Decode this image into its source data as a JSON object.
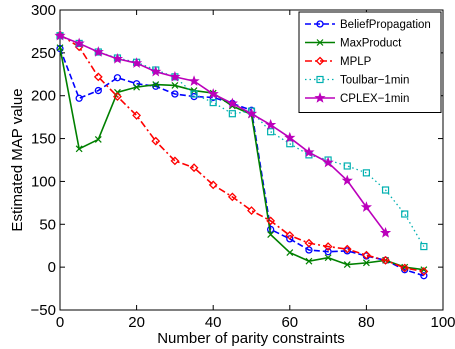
{
  "chart_data": {
    "type": "line",
    "title": "",
    "xlabel": "Number of parity constraints",
    "ylabel": "Estimated MAP value",
    "xlim": [
      0,
      100
    ],
    "ylim": [
      -50,
      300
    ],
    "xticks": [
      0,
      20,
      40,
      60,
      80,
      100
    ],
    "yticks": [
      -50,
      0,
      50,
      100,
      150,
      200,
      250,
      300
    ],
    "grid": false,
    "legend_position": "top-right",
    "series": [
      {
        "name": "BeliefPropagation",
        "color": "#0000ff",
        "line_style": "dashed",
        "marker": "circle",
        "x": [
          0,
          5,
          10,
          15,
          20,
          25,
          30,
          35,
          40,
          45,
          50,
          55,
          60,
          65,
          70,
          75,
          80,
          85,
          90,
          95
        ],
        "y": [
          255,
          197,
          206,
          221,
          214,
          211,
          202,
          199,
          198,
          191,
          183,
          44,
          33,
          20,
          18,
          19,
          13,
          8,
          -3,
          -10
        ]
      },
      {
        "name": "MaxProduct",
        "color": "#008000",
        "line_style": "solid",
        "marker": "x",
        "x": [
          0,
          5,
          10,
          15,
          20,
          25,
          30,
          35,
          40,
          45,
          50,
          55,
          60,
          65,
          70,
          75,
          80,
          85,
          90,
          95
        ],
        "y": [
          256,
          138,
          149,
          204,
          210,
          213,
          212,
          206,
          203,
          188,
          178,
          38,
          17,
          7,
          11,
          3,
          5,
          8,
          0,
          -3
        ]
      },
      {
        "name": "MPLP",
        "color": "#ff0000",
        "line_style": "dashdot",
        "marker": "diamond",
        "x": [
          0,
          5,
          10,
          15,
          20,
          25,
          30,
          35,
          40,
          45,
          50,
          55,
          60,
          65,
          70,
          75,
          80,
          85,
          90,
          95
        ],
        "y": [
          271,
          257,
          222,
          199,
          177,
          147,
          124,
          116,
          96,
          82,
          66,
          54,
          37,
          28,
          24,
          21,
          14,
          8,
          -1,
          -5
        ]
      },
      {
        "name": "Toulbar−1min",
        "color": "#00b0b0",
        "line_style": "dotted",
        "marker": "square",
        "x": [
          0,
          5,
          10,
          15,
          20,
          25,
          30,
          35,
          40,
          45,
          50,
          55,
          60,
          65,
          70,
          75,
          80,
          85,
          90,
          95
        ],
        "y": [
          270,
          261,
          251,
          244,
          239,
          230,
          222,
          202,
          192,
          179,
          182,
          158,
          144,
          131,
          125,
          118,
          110,
          90,
          62,
          24
        ]
      },
      {
        "name": "CPLEX−1min",
        "color": "#bb00bb",
        "line_style": "solid",
        "marker": "star",
        "x": [
          0,
          5,
          10,
          15,
          20,
          25,
          30,
          35,
          40,
          45,
          50,
          55,
          60,
          65,
          70,
          75,
          80,
          85
        ],
        "y": [
          270,
          261,
          251,
          243,
          238,
          228,
          222,
          217,
          202,
          191,
          179,
          166,
          151,
          134,
          122,
          101,
          70,
          40
        ]
      }
    ]
  }
}
